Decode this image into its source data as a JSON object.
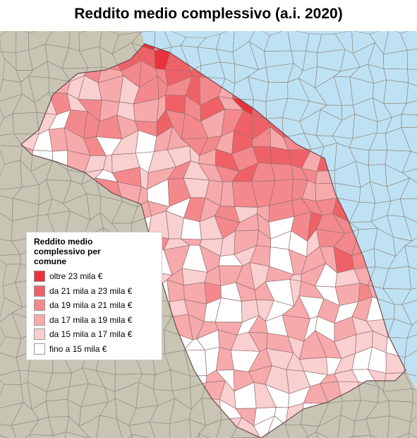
{
  "title": "Reddito medio complessivo (a.i. 2020)",
  "legend": {
    "title": "Reddito medio complessivo per comune",
    "items": [
      {
        "label": "oltre 23 mila €",
        "color": "#e8323c"
      },
      {
        "label": "da 21 mila a 23 mila €",
        "color": "#ee6166"
      },
      {
        "label": "da 19 mila a 21 mila €",
        "color": "#f3898c"
      },
      {
        "label": "da 17 mila a 19 mila €",
        "color": "#f6aaac"
      },
      {
        "label": "da 15 mila a 17 mila €",
        "color": "#f9cfd0"
      },
      {
        "label": "fino a 15 mila €",
        "color": "#ffffff"
      }
    ]
  }
}
